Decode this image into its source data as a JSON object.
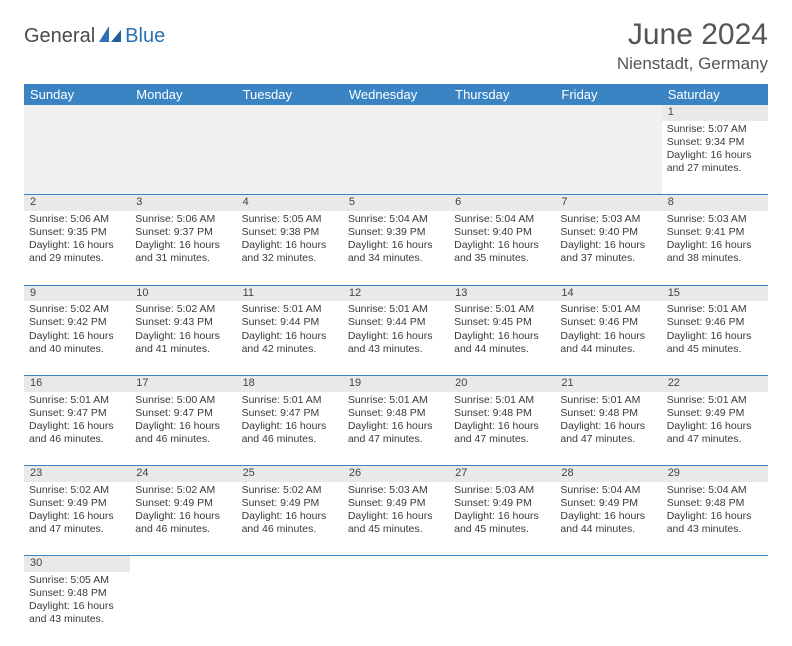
{
  "logo": {
    "text1": "General",
    "text2": "Blue"
  },
  "title": "June 2024",
  "location": "Nienstadt, Germany",
  "colors": {
    "header_bg": "#3b84c4",
    "header_fg": "#ffffff",
    "daynum_bg": "#e9e9e9",
    "border": "#3b84c4",
    "logo_blue": "#2a72b5",
    "text": "#3a3a3a"
  },
  "typography": {
    "title_fontsize": 30,
    "location_fontsize": 17,
    "dayheader_fontsize": 13,
    "cell_fontsize": 10.5
  },
  "day_headers": [
    "Sunday",
    "Monday",
    "Tuesday",
    "Wednesday",
    "Thursday",
    "Friday",
    "Saturday"
  ],
  "weeks": [
    [
      null,
      null,
      null,
      null,
      null,
      null,
      {
        "n": "1",
        "sr": "Sunrise: 5:07 AM",
        "ss": "Sunset: 9:34 PM",
        "dl": "Daylight: 16 hours and 27 minutes."
      }
    ],
    [
      {
        "n": "2",
        "sr": "Sunrise: 5:06 AM",
        "ss": "Sunset: 9:35 PM",
        "dl": "Daylight: 16 hours and 29 minutes."
      },
      {
        "n": "3",
        "sr": "Sunrise: 5:06 AM",
        "ss": "Sunset: 9:37 PM",
        "dl": "Daylight: 16 hours and 31 minutes."
      },
      {
        "n": "4",
        "sr": "Sunrise: 5:05 AM",
        "ss": "Sunset: 9:38 PM",
        "dl": "Daylight: 16 hours and 32 minutes."
      },
      {
        "n": "5",
        "sr": "Sunrise: 5:04 AM",
        "ss": "Sunset: 9:39 PM",
        "dl": "Daylight: 16 hours and 34 minutes."
      },
      {
        "n": "6",
        "sr": "Sunrise: 5:04 AM",
        "ss": "Sunset: 9:40 PM",
        "dl": "Daylight: 16 hours and 35 minutes."
      },
      {
        "n": "7",
        "sr": "Sunrise: 5:03 AM",
        "ss": "Sunset: 9:40 PM",
        "dl": "Daylight: 16 hours and 37 minutes."
      },
      {
        "n": "8",
        "sr": "Sunrise: 5:03 AM",
        "ss": "Sunset: 9:41 PM",
        "dl": "Daylight: 16 hours and 38 minutes."
      }
    ],
    [
      {
        "n": "9",
        "sr": "Sunrise: 5:02 AM",
        "ss": "Sunset: 9:42 PM",
        "dl": "Daylight: 16 hours and 40 minutes."
      },
      {
        "n": "10",
        "sr": "Sunrise: 5:02 AM",
        "ss": "Sunset: 9:43 PM",
        "dl": "Daylight: 16 hours and 41 minutes."
      },
      {
        "n": "11",
        "sr": "Sunrise: 5:01 AM",
        "ss": "Sunset: 9:44 PM",
        "dl": "Daylight: 16 hours and 42 minutes."
      },
      {
        "n": "12",
        "sr": "Sunrise: 5:01 AM",
        "ss": "Sunset: 9:44 PM",
        "dl": "Daylight: 16 hours and 43 minutes."
      },
      {
        "n": "13",
        "sr": "Sunrise: 5:01 AM",
        "ss": "Sunset: 9:45 PM",
        "dl": "Daylight: 16 hours and 44 minutes."
      },
      {
        "n": "14",
        "sr": "Sunrise: 5:01 AM",
        "ss": "Sunset: 9:46 PM",
        "dl": "Daylight: 16 hours and 44 minutes."
      },
      {
        "n": "15",
        "sr": "Sunrise: 5:01 AM",
        "ss": "Sunset: 9:46 PM",
        "dl": "Daylight: 16 hours and 45 minutes."
      }
    ],
    [
      {
        "n": "16",
        "sr": "Sunrise: 5:01 AM",
        "ss": "Sunset: 9:47 PM",
        "dl": "Daylight: 16 hours and 46 minutes."
      },
      {
        "n": "17",
        "sr": "Sunrise: 5:00 AM",
        "ss": "Sunset: 9:47 PM",
        "dl": "Daylight: 16 hours and 46 minutes."
      },
      {
        "n": "18",
        "sr": "Sunrise: 5:01 AM",
        "ss": "Sunset: 9:47 PM",
        "dl": "Daylight: 16 hours and 46 minutes."
      },
      {
        "n": "19",
        "sr": "Sunrise: 5:01 AM",
        "ss": "Sunset: 9:48 PM",
        "dl": "Daylight: 16 hours and 47 minutes."
      },
      {
        "n": "20",
        "sr": "Sunrise: 5:01 AM",
        "ss": "Sunset: 9:48 PM",
        "dl": "Daylight: 16 hours and 47 minutes."
      },
      {
        "n": "21",
        "sr": "Sunrise: 5:01 AM",
        "ss": "Sunset: 9:48 PM",
        "dl": "Daylight: 16 hours and 47 minutes."
      },
      {
        "n": "22",
        "sr": "Sunrise: 5:01 AM",
        "ss": "Sunset: 9:49 PM",
        "dl": "Daylight: 16 hours and 47 minutes."
      }
    ],
    [
      {
        "n": "23",
        "sr": "Sunrise: 5:02 AM",
        "ss": "Sunset: 9:49 PM",
        "dl": "Daylight: 16 hours and 47 minutes."
      },
      {
        "n": "24",
        "sr": "Sunrise: 5:02 AM",
        "ss": "Sunset: 9:49 PM",
        "dl": "Daylight: 16 hours and 46 minutes."
      },
      {
        "n": "25",
        "sr": "Sunrise: 5:02 AM",
        "ss": "Sunset: 9:49 PM",
        "dl": "Daylight: 16 hours and 46 minutes."
      },
      {
        "n": "26",
        "sr": "Sunrise: 5:03 AM",
        "ss": "Sunset: 9:49 PM",
        "dl": "Daylight: 16 hours and 45 minutes."
      },
      {
        "n": "27",
        "sr": "Sunrise: 5:03 AM",
        "ss": "Sunset: 9:49 PM",
        "dl": "Daylight: 16 hours and 45 minutes."
      },
      {
        "n": "28",
        "sr": "Sunrise: 5:04 AM",
        "ss": "Sunset: 9:49 PM",
        "dl": "Daylight: 16 hours and 44 minutes."
      },
      {
        "n": "29",
        "sr": "Sunrise: 5:04 AM",
        "ss": "Sunset: 9:48 PM",
        "dl": "Daylight: 16 hours and 43 minutes."
      }
    ],
    [
      {
        "n": "30",
        "sr": "Sunrise: 5:05 AM",
        "ss": "Sunset: 9:48 PM",
        "dl": "Daylight: 16 hours and 43 minutes."
      },
      null,
      null,
      null,
      null,
      null,
      null
    ]
  ]
}
